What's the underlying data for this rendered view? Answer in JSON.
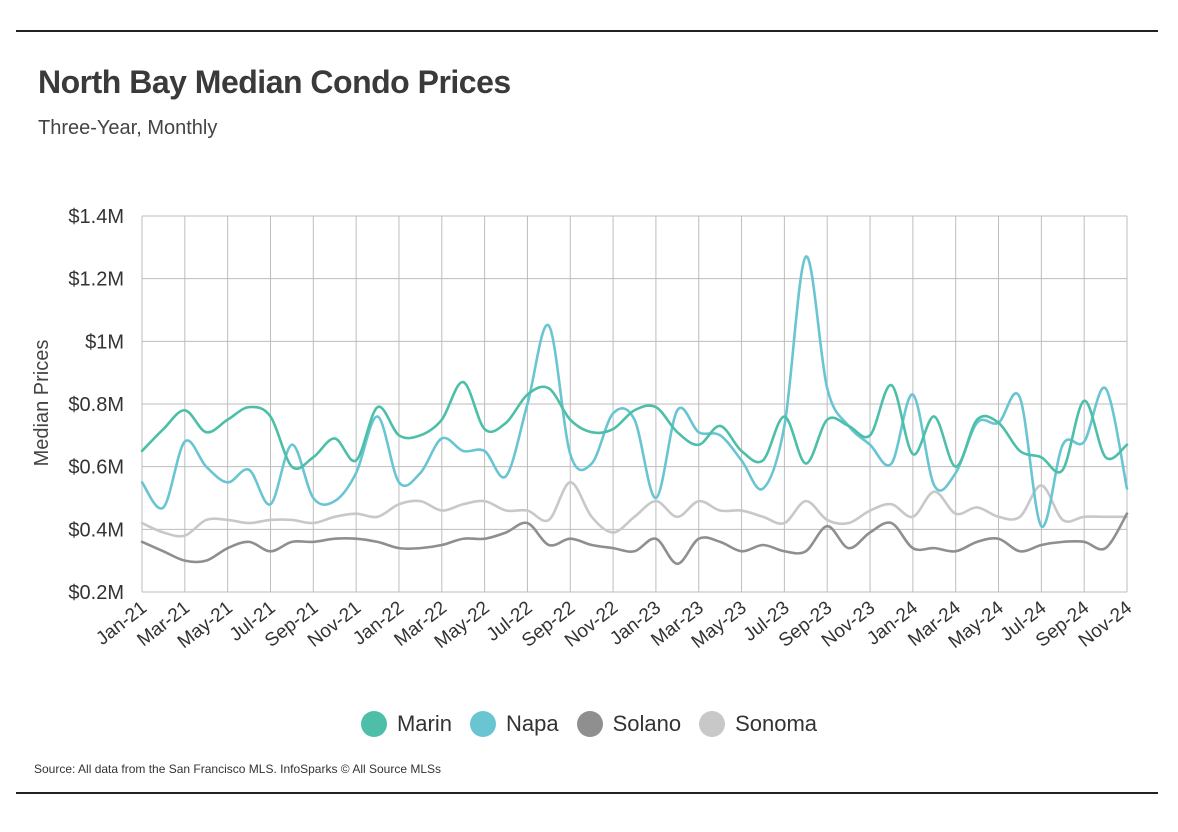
{
  "header": {
    "title": "North Bay Median Condo Prices",
    "subtitle": "Three-Year, Monthly"
  },
  "footer": {
    "source": "Source:  All data from the San Francisco MLS. InfoSparks © All Source MLSs"
  },
  "chart_data": {
    "type": "line",
    "ylabel": "Median Prices",
    "ylim": [
      0.2,
      1.4
    ],
    "grid": true,
    "legend_position": "bottom-center",
    "y_ticks": [
      {
        "value": 1.4,
        "label": "$1.4M"
      },
      {
        "value": 1.2,
        "label": "$1.2M"
      },
      {
        "value": 1.0,
        "label": "$1M"
      },
      {
        "value": 0.8,
        "label": "$0.8M"
      },
      {
        "value": 0.6,
        "label": "$0.6M"
      },
      {
        "value": 0.4,
        "label": "$0.4M"
      },
      {
        "value": 0.2,
        "label": "$0.2M"
      }
    ],
    "x": [
      "Jan-21",
      "Feb-21",
      "Mar-21",
      "Apr-21",
      "May-21",
      "Jun-21",
      "Jul-21",
      "Aug-21",
      "Sep-21",
      "Oct-21",
      "Nov-21",
      "Dec-21",
      "Jan-22",
      "Feb-22",
      "Mar-22",
      "Apr-22",
      "May-22",
      "Jun-22",
      "Jul-22",
      "Aug-22",
      "Sep-22",
      "Oct-22",
      "Nov-22",
      "Dec-22",
      "Jan-23",
      "Feb-23",
      "Mar-23",
      "Apr-23",
      "May-23",
      "Jun-23",
      "Jul-23",
      "Aug-23",
      "Sep-23",
      "Oct-23",
      "Nov-23",
      "Dec-23",
      "Jan-24",
      "Feb-24",
      "Mar-24",
      "Apr-24",
      "May-24",
      "Jun-24",
      "Jul-24",
      "Aug-24",
      "Sep-24",
      "Oct-24",
      "Nov-24"
    ],
    "x_tick_labels": [
      "Jan-21",
      "Mar-21",
      "May-21",
      "Jul-21",
      "Sep-21",
      "Nov-21",
      "Jan-22",
      "Mar-22",
      "May-22",
      "Jul-22",
      "Sep-22",
      "Nov-22",
      "Jan-23",
      "Mar-23",
      "May-23",
      "Jul-23",
      "Sep-23",
      "Nov-23",
      "Jan-24",
      "Mar-24",
      "May-24",
      "Jul-24",
      "Sep-24",
      "Nov-24"
    ],
    "series": [
      {
        "name": "Marin",
        "color": "#4dbfa8",
        "values": [
          0.65,
          0.72,
          0.78,
          0.71,
          0.75,
          0.79,
          0.76,
          0.6,
          0.63,
          0.69,
          0.62,
          0.79,
          0.7,
          0.7,
          0.75,
          0.87,
          0.72,
          0.74,
          0.83,
          0.85,
          0.75,
          0.71,
          0.72,
          0.78,
          0.79,
          0.71,
          0.67,
          0.73,
          0.65,
          0.62,
          0.76,
          0.61,
          0.75,
          0.73,
          0.7,
          0.86,
          0.64,
          0.76,
          0.6,
          0.75,
          0.74,
          0.65,
          0.63,
          0.59,
          0.81,
          0.63,
          0.67
        ]
      },
      {
        "name": "Napa",
        "color": "#6ac5d2",
        "values": [
          0.55,
          0.47,
          0.68,
          0.6,
          0.55,
          0.59,
          0.48,
          0.67,
          0.5,
          0.49,
          0.58,
          0.76,
          0.55,
          0.58,
          0.69,
          0.65,
          0.65,
          0.57,
          0.8,
          1.05,
          0.64,
          0.61,
          0.77,
          0.75,
          0.5,
          0.78,
          0.71,
          0.7,
          0.62,
          0.53,
          0.73,
          1.27,
          0.85,
          0.73,
          0.67,
          0.61,
          0.83,
          0.54,
          0.58,
          0.74,
          0.74,
          0.82,
          0.41,
          0.67,
          0.68,
          0.85,
          0.53
        ]
      },
      {
        "name": "Solano",
        "color": "#8f8f8f",
        "values": [
          0.36,
          0.33,
          0.3,
          0.3,
          0.34,
          0.36,
          0.33,
          0.36,
          0.36,
          0.37,
          0.37,
          0.36,
          0.34,
          0.34,
          0.35,
          0.37,
          0.37,
          0.39,
          0.42,
          0.35,
          0.37,
          0.35,
          0.34,
          0.33,
          0.37,
          0.29,
          0.37,
          0.36,
          0.33,
          0.35,
          0.33,
          0.33,
          0.41,
          0.34,
          0.39,
          0.42,
          0.34,
          0.34,
          0.33,
          0.36,
          0.37,
          0.33,
          0.35,
          0.36,
          0.36,
          0.34,
          0.45
        ]
      },
      {
        "name": "Sonoma",
        "color": "#c8c8c8",
        "values": [
          0.42,
          0.39,
          0.38,
          0.43,
          0.43,
          0.42,
          0.43,
          0.43,
          0.42,
          0.44,
          0.45,
          0.44,
          0.48,
          0.49,
          0.46,
          0.48,
          0.49,
          0.46,
          0.46,
          0.43,
          0.55,
          0.44,
          0.39,
          0.44,
          0.49,
          0.44,
          0.49,
          0.46,
          0.46,
          0.44,
          0.42,
          0.49,
          0.43,
          0.42,
          0.46,
          0.48,
          0.44,
          0.52,
          0.45,
          0.47,
          0.44,
          0.44,
          0.54,
          0.43,
          0.44,
          0.44,
          0.44
        ]
      }
    ]
  }
}
